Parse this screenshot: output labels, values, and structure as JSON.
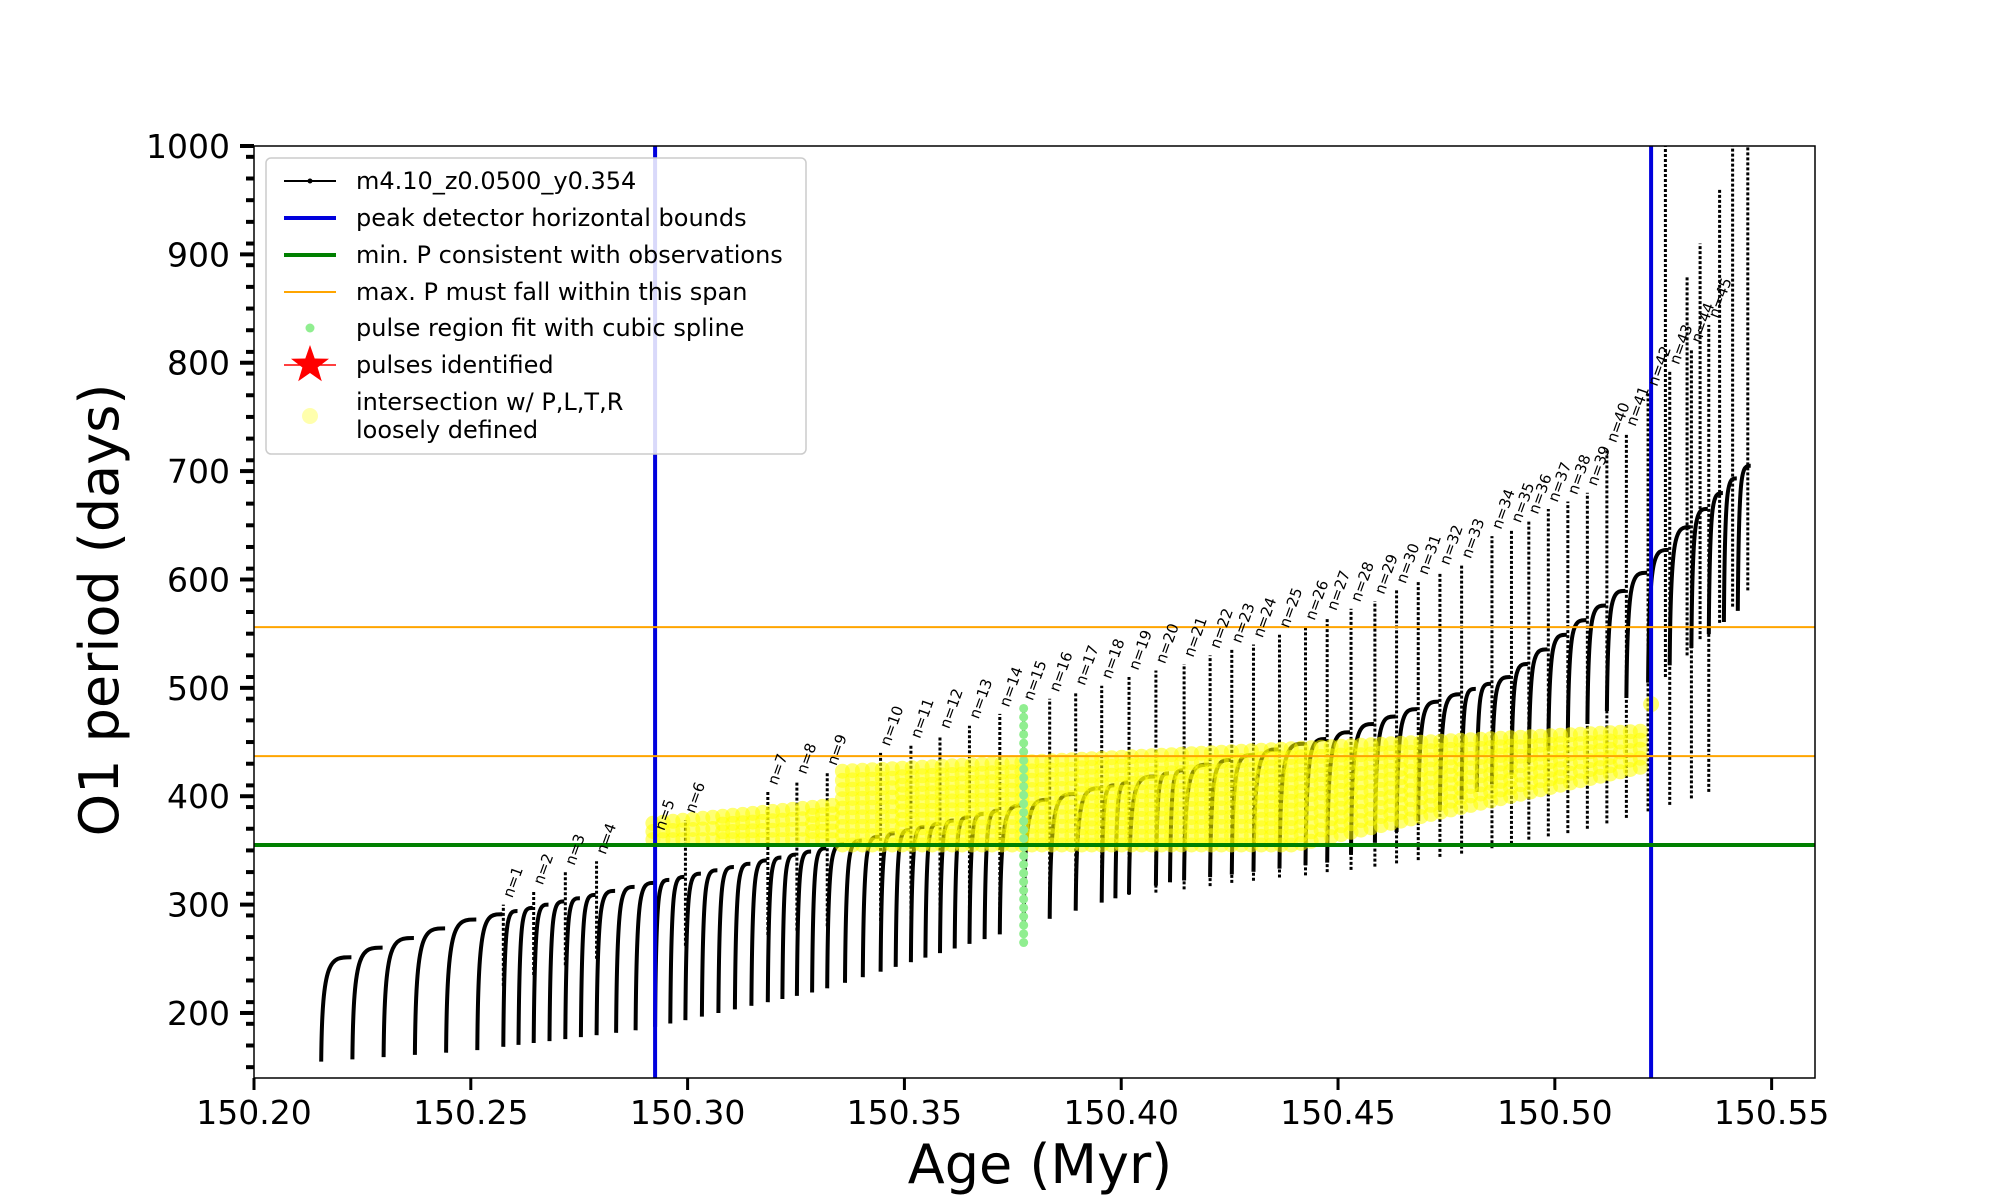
{
  "chart_data": {
    "type": "scatter",
    "xlabel": "Age (Myr)",
    "ylabel": "O1 period (days)",
    "xlim": [
      150.2,
      150.56
    ],
    "ylim": [
      140,
      1000
    ],
    "xticks": [
      "150.20",
      "150.25",
      "150.30",
      "150.35",
      "150.40",
      "150.45",
      "150.50",
      "150.55"
    ],
    "xtick_values": [
      150.2,
      150.25,
      150.3,
      150.35,
      150.4,
      150.45,
      150.5,
      150.55
    ],
    "yticks": [
      "200",
      "300",
      "400",
      "500",
      "600",
      "700",
      "800",
      "900",
      "1000"
    ],
    "ytick_values": [
      200,
      300,
      400,
      500,
      600,
      700,
      800,
      900,
      1000
    ],
    "grid": false,
    "legend_position": "top-left",
    "legend": [
      {
        "label": "m4.10_z0.0500_y0.354",
        "kind": "line-marker",
        "color": "#000000"
      },
      {
        "label": "peak detector horizontal bounds",
        "kind": "line",
        "color": "#0000dd"
      },
      {
        "label": "min. P consistent with observations",
        "kind": "line",
        "color": "#008000"
      },
      {
        "label": "max. P must fall within this span",
        "kind": "thin-line",
        "color": "#ffa500"
      },
      {
        "label": "pulse region fit with cubic spline",
        "kind": "dot",
        "color": "#90ee90"
      },
      {
        "label": "pulses identified",
        "kind": "star",
        "color": "#ff0000"
      },
      {
        "label": "intersection w/ P,L,T,R",
        "label2": "loosely defined",
        "kind": "circle",
        "color": "#ffff99"
      }
    ],
    "reference_lines": {
      "vertical_blue": [
        150.2925,
        150.5222
      ],
      "horizontal_green": 355,
      "horizontal_orange": [
        437,
        556
      ]
    },
    "pulses": [
      {
        "n": "n=1",
        "age": 150.2575,
        "peak": 300,
        "min": 225
      },
      {
        "n": "n=2",
        "age": 150.2645,
        "peak": 312,
        "min": 235
      },
      {
        "n": "n=3",
        "age": 150.2718,
        "peak": 330,
        "min": 244
      },
      {
        "n": "n=4",
        "age": 150.279,
        "peak": 340,
        "min": 250
      },
      {
        "n": "n=5",
        "age": 150.2925,
        "peak": 362,
        "min": 258
      },
      {
        "n": "n=6",
        "age": 150.2995,
        "peak": 378,
        "min": 262
      },
      {
        "n": "n=7",
        "age": 150.3185,
        "peak": 404,
        "min": 272
      },
      {
        "n": "n=8",
        "age": 150.3252,
        "peak": 414,
        "min": 276
      },
      {
        "n": "n=9",
        "age": 150.3322,
        "peak": 422,
        "min": 280
      },
      {
        "n": "n=10",
        "age": 150.3445,
        "peak": 440,
        "min": 285
      },
      {
        "n": "n=11",
        "age": 150.3515,
        "peak": 447,
        "min": 287
      },
      {
        "n": "n=12",
        "age": 150.3582,
        "peak": 456,
        "min": 290
      },
      {
        "n": "n=13",
        "age": 150.365,
        "peak": 465,
        "min": 292
      },
      {
        "n": "n=14",
        "age": 150.372,
        "peak": 476,
        "min": 295
      },
      {
        "n": "n=15",
        "age": 150.3775,
        "peak": 482,
        "min": 297
      },
      {
        "n": "n=16",
        "age": 150.3835,
        "peak": 490,
        "min": 300
      },
      {
        "n": "n=17",
        "age": 150.3895,
        "peak": 496,
        "min": 303
      },
      {
        "n": "n=18",
        "age": 150.3955,
        "peak": 502,
        "min": 306
      },
      {
        "n": "n=19",
        "age": 150.4018,
        "peak": 510,
        "min": 309
      },
      {
        "n": "n=20",
        "age": 150.408,
        "peak": 516,
        "min": 311
      },
      {
        "n": "n=21",
        "age": 150.4145,
        "peak": 522,
        "min": 314
      },
      {
        "n": "n=22",
        "age": 150.4205,
        "peak": 530,
        "min": 317
      },
      {
        "n": "n=23",
        "age": 150.4255,
        "peak": 535,
        "min": 320
      },
      {
        "n": "n=24",
        "age": 150.4305,
        "peak": 540,
        "min": 322
      },
      {
        "n": "n=25",
        "age": 150.4365,
        "peak": 549,
        "min": 325
      },
      {
        "n": "n=26",
        "age": 150.4425,
        "peak": 556,
        "min": 327
      },
      {
        "n": "n=27",
        "age": 150.4475,
        "peak": 565,
        "min": 330
      },
      {
        "n": "n=28",
        "age": 150.453,
        "peak": 573,
        "min": 332
      },
      {
        "n": "n=29",
        "age": 150.4585,
        "peak": 580,
        "min": 335
      },
      {
        "n": "n=30",
        "age": 150.4635,
        "peak": 590,
        "min": 338
      },
      {
        "n": "n=31",
        "age": 150.4685,
        "peak": 598,
        "min": 341
      },
      {
        "n": "n=32",
        "age": 150.4735,
        "peak": 607,
        "min": 344
      },
      {
        "n": "n=33",
        "age": 150.4785,
        "peak": 613,
        "min": 347
      },
      {
        "n": "n=34",
        "age": 150.4855,
        "peak": 640,
        "min": 352
      },
      {
        "n": "n=35",
        "age": 150.49,
        "peak": 646,
        "min": 356
      },
      {
        "n": "n=36",
        "age": 150.494,
        "peak": 654,
        "min": 360
      },
      {
        "n": "n=37",
        "age": 150.4985,
        "peak": 665,
        "min": 363
      },
      {
        "n": "n=38",
        "age": 150.503,
        "peak": 672,
        "min": 366
      },
      {
        "n": "n=39",
        "age": 150.5075,
        "peak": 680,
        "min": 370
      },
      {
        "n": "n=40",
        "age": 150.512,
        "peak": 720,
        "min": 375
      },
      {
        "n": "n=41",
        "age": 150.5165,
        "peak": 735,
        "min": 380
      },
      {
        "n": "n=42",
        "age": 150.5215,
        "peak": 772,
        "min": 386
      },
      {
        "n": "n=43",
        "age": 150.5265,
        "peak": 792,
        "min": 392
      },
      {
        "n": "n=44",
        "age": 150.5315,
        "peak": 812,
        "min": 398
      },
      {
        "n": "n=45",
        "age": 150.5355,
        "peak": 835,
        "min": 404
      }
    ],
    "baseline_curve": {
      "age": [
        150.215,
        150.25,
        150.29,
        150.33,
        150.37,
        150.41,
        150.45,
        150.49,
        150.52,
        150.545
      ],
      "period": [
        242,
        285,
        318,
        350,
        385,
        420,
        455,
        510,
        600,
        705
      ]
    },
    "cycle_minimum_curve": {
      "age": [
        150.215,
        150.25,
        150.29,
        150.33,
        150.37,
        150.41,
        150.45,
        150.49,
        150.52,
        150.545
      ],
      "period": [
        155,
        165,
        185,
        220,
        270,
        320,
        340,
        420,
        500,
        580
      ]
    },
    "spline_region": {
      "age": 150.3775,
      "period_min": 265,
      "period_max": 488
    },
    "late_spikes": [
      {
        "age": 150.5255,
        "peak": 1000,
        "min": 510
      },
      {
        "age": 150.5305,
        "peak": 880,
        "min": 530
      },
      {
        "age": 150.5335,
        "peak": 910,
        "min": 545
      },
      {
        "age": 150.538,
        "peak": 960,
        "min": 560
      },
      {
        "age": 150.541,
        "peak": 1000,
        "min": 575
      },
      {
        "age": 150.5445,
        "peak": 1000,
        "min": 590
      }
    ]
  }
}
